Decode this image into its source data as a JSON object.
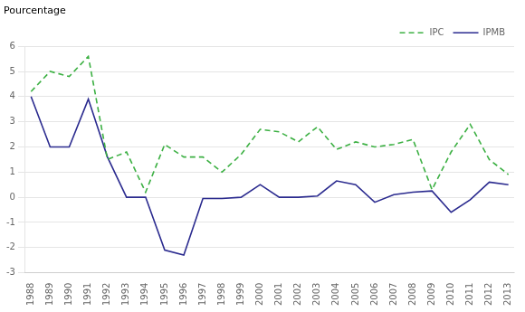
{
  "chart_data": {
    "type": "line",
    "ylabel": "Pourcentage",
    "x": [
      1988,
      1989,
      1990,
      1991,
      1992,
      1993,
      1994,
      1995,
      1996,
      1997,
      1998,
      1999,
      2000,
      2001,
      2002,
      2003,
      2004,
      2005,
      2006,
      2007,
      2008,
      2009,
      2010,
      2011,
      2012,
      2013
    ],
    "series": [
      {
        "name": "IPC",
        "color": "#3cb043",
        "line_style": "dashed",
        "values": [
          4.2,
          5.0,
          4.8,
          5.6,
          1.5,
          1.8,
          0.2,
          2.1,
          1.6,
          1.6,
          1.0,
          1.7,
          2.7,
          2.6,
          2.2,
          2.8,
          1.9,
          2.2,
          2.0,
          2.1,
          2.3,
          0.3,
          1.8,
          2.9,
          1.5,
          0.9
        ]
      },
      {
        "name": "IPMB",
        "color": "#2b2b8f",
        "line_style": "solid",
        "values": [
          4.0,
          2.0,
          2.0,
          3.9,
          1.6,
          0.0,
          0.0,
          -2.1,
          -2.3,
          -0.05,
          -0.05,
          0.0,
          0.5,
          0.0,
          0.0,
          0.05,
          0.65,
          0.5,
          -0.2,
          0.1,
          0.2,
          0.25,
          -0.6,
          -0.1,
          0.6,
          0.5
        ]
      }
    ],
    "xlim": [
      1987.7,
      2013.3
    ],
    "xticks": [
      1988,
      1989,
      1990,
      1991,
      1992,
      1993,
      1994,
      1995,
      1996,
      1997,
      1998,
      1999,
      2000,
      2001,
      2002,
      2003,
      2004,
      2005,
      2006,
      2007,
      2008,
      2009,
      2010,
      2011,
      2012,
      2013
    ],
    "ylim": [
      -3,
      6
    ],
    "yticks": [
      -3,
      -2,
      -1,
      0,
      1,
      2,
      3,
      4,
      5,
      6
    ],
    "grid": true,
    "legend": "upper right"
  }
}
